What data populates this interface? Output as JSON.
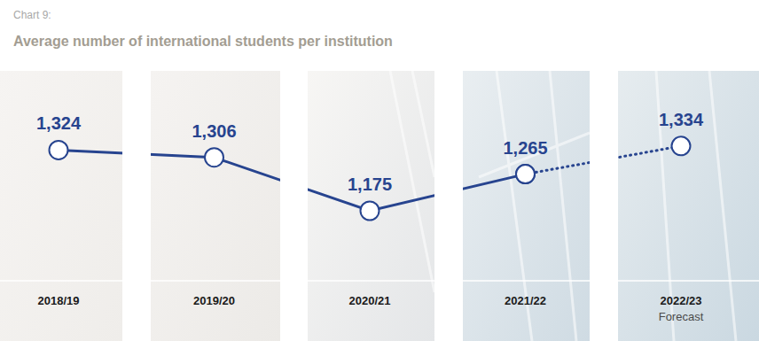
{
  "chart_data": {
    "type": "line",
    "subtitle": "Chart 9:",
    "title": "Average number of international students per institution",
    "categories": [
      "2018/19",
      "2019/20",
      "2020/21",
      "2021/22",
      "2022/23"
    ],
    "series": [
      {
        "values": [
          1324,
          1306,
          1175,
          1265,
          null
        ],
        "value_labels": [
          "1,324",
          "1,306",
          "1,175",
          "1,265",
          null
        ],
        "line_style": "solid",
        "color": "#27448f"
      },
      {
        "values": [
          null,
          null,
          null,
          1265,
          1334
        ],
        "value_labels": [
          null,
          null,
          null,
          "1,265",
          "1,334"
        ],
        "line_style": "dotted",
        "color": "#27448f"
      }
    ],
    "annotations": [
      {
        "text": "Forecast",
        "x": "2022/23"
      }
    ],
    "ylim": [
      900,
      1500
    ],
    "tick_labels": "x",
    "grid": false,
    "data_labels": true,
    "marker": "circle"
  }
}
